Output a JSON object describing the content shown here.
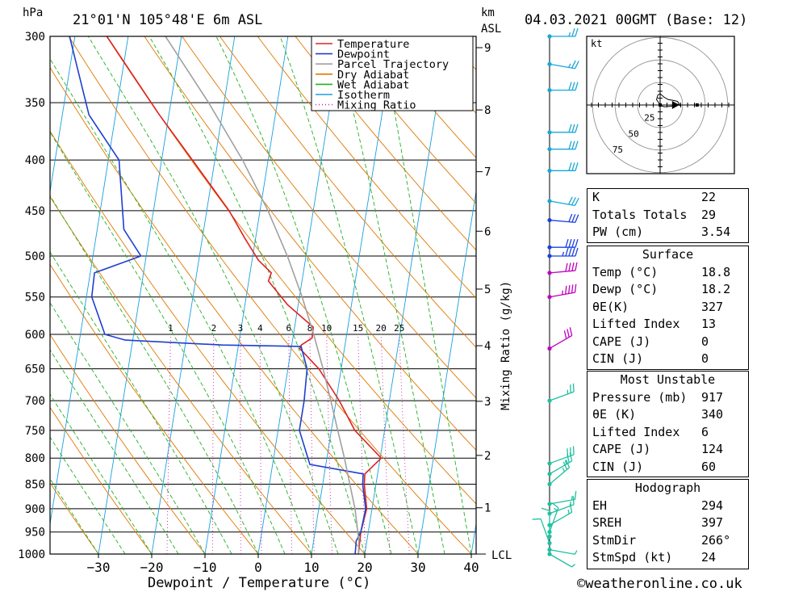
{
  "header": {
    "location": "21°01'N  105°48'E  6m  ASL",
    "date": "04.03.2021  00GMT  (Base: 12)",
    "hpa": "hPa",
    "km": "km",
    "asl": "ASL"
  },
  "footer": {
    "xlabel": "Dewpoint / Temperature (°C)",
    "credit": "©weatheronline.co.uk",
    "mixing_ratio_axis": "Mixing Ratio (g/kg)",
    "lcl": "LCL"
  },
  "legend": [
    {
      "label": "Temperature",
      "color": "#e02020",
      "style": "solid"
    },
    {
      "label": "Dewpoint",
      "color": "#1f3fd0",
      "style": "solid"
    },
    {
      "label": "Parcel Trajectory",
      "color": "#a0a0a0",
      "style": "solid"
    },
    {
      "label": "Dry Adiabat",
      "color": "#e07800",
      "style": "solid"
    },
    {
      "label": "Wet Adiabat",
      "color": "#20b020",
      "style": "solid"
    },
    {
      "label": "Isotherm",
      "color": "#1a9fe0",
      "style": "solid"
    },
    {
      "label": "Mixing Ratio",
      "color": "#d020b0",
      "style": "dotted"
    }
  ],
  "chart_data": {
    "type": "line",
    "title": "21°01'N  105°48'E  6m  ASL",
    "xlabel": "Dewpoint / Temperature (°C)",
    "ylabel": "hPa",
    "x_ticks": [
      -30,
      -20,
      -10,
      0,
      10,
      20,
      30,
      40
    ],
    "pressure_levels": [
      300,
      350,
      400,
      450,
      500,
      550,
      600,
      650,
      700,
      750,
      800,
      850,
      900,
      950,
      1000
    ],
    "km_ticks": [
      {
        "km": 1,
        "p": 898
      },
      {
        "km": 2,
        "p": 795
      },
      {
        "km": 3,
        "p": 701
      },
      {
        "km": 4,
        "p": 616
      },
      {
        "km": 5,
        "p": 540
      },
      {
        "km": 6,
        "p": 472
      },
      {
        "km": 7,
        "p": 411
      },
      {
        "km": 8,
        "p": 356
      },
      {
        "km": 9,
        "p": 308
      }
    ],
    "mixing_ratio_labels": [
      "1",
      "2",
      "3",
      "4",
      "6",
      "8",
      "10",
      "15",
      "20",
      "25"
    ],
    "mixing_ratio_values": [
      1,
      2,
      3,
      4,
      6,
      8,
      10,
      15,
      20,
      25
    ],
    "series": [
      {
        "name": "Temperature",
        "color": "#e02020",
        "points": [
          [
            1000,
            18.8
          ],
          [
            950,
            18.6
          ],
          [
            900,
            19.0
          ],
          [
            850,
            17.8
          ],
          [
            830,
            17.6
          ],
          [
            800,
            20.2
          ],
          [
            750,
            14.4
          ],
          [
            700,
            10.6
          ],
          [
            650,
            5.8
          ],
          [
            620,
            1.6
          ],
          [
            615,
            1.8
          ],
          [
            605,
            3.6
          ],
          [
            590,
            3.5
          ],
          [
            560,
            -2.0
          ],
          [
            530,
            -6.3
          ],
          [
            520,
            -6.0
          ],
          [
            505,
            -8.8
          ],
          [
            480,
            -12.0
          ],
          [
            450,
            -15.8
          ],
          [
            400,
            -24.2
          ],
          [
            360,
            -31.8
          ],
          [
            300,
            -44.0
          ]
        ]
      },
      {
        "name": "Dewpoint",
        "color": "#1f3fd0",
        "points": [
          [
            1000,
            18.2
          ],
          [
            970,
            18.0
          ],
          [
            950,
            18.6
          ],
          [
            900,
            18.8
          ],
          [
            850,
            17.5
          ],
          [
            830,
            17.3
          ],
          [
            812,
            7.0
          ],
          [
            750,
            4.0
          ],
          [
            700,
            4.0
          ],
          [
            650,
            3.6
          ],
          [
            617,
            1.8
          ],
          [
            615,
            -13.0
          ],
          [
            608,
            -31.4
          ],
          [
            600,
            -35.4
          ],
          [
            550,
            -39.0
          ],
          [
            520,
            -39.2
          ],
          [
            500,
            -31.0
          ],
          [
            470,
            -35.0
          ],
          [
            400,
            -38.0
          ],
          [
            360,
            -45.0
          ],
          [
            300,
            -51.0
          ]
        ]
      },
      {
        "name": "Parcel Trajectory",
        "color": "#a0a0a0",
        "points": [
          [
            1000,
            18.8
          ],
          [
            970,
            18.5
          ],
          [
            900,
            16.8
          ],
          [
            850,
            15.1
          ],
          [
            800,
            13.3
          ],
          [
            750,
            11.2
          ],
          [
            700,
            9.0
          ],
          [
            650,
            6.6
          ],
          [
            600,
            3.8
          ],
          [
            550,
            0.5
          ],
          [
            500,
            -3.5
          ],
          [
            450,
            -8.5
          ],
          [
            400,
            -14.8
          ],
          [
            350,
            -22.9
          ],
          [
            300,
            -33.0
          ]
        ]
      }
    ],
    "wind_profile": [
      {
        "p": 1000,
        "dir": 300,
        "spd": 5
      },
      {
        "p": 990,
        "dir": 280,
        "spd": 5
      },
      {
        "p": 975,
        "dir": 160,
        "spd": 10
      },
      {
        "p": 960,
        "dir": 180,
        "spd": 10
      },
      {
        "p": 950,
        "dir": 200,
        "spd": 15
      },
      {
        "p": 935,
        "dir": 240,
        "spd": 15
      },
      {
        "p": 910,
        "dir": 250,
        "spd": 15
      },
      {
        "p": 890,
        "dir": 260,
        "spd": 15
      },
      {
        "p": 850,
        "dir": 230,
        "spd": 25
      },
      {
        "p": 830,
        "dir": 240,
        "spd": 25
      },
      {
        "p": 810,
        "dir": 250,
        "spd": 30
      },
      {
        "p": 700,
        "dir": 250,
        "spd": 25
      },
      {
        "p": 620,
        "dir": 240,
        "spd": 30
      },
      {
        "p": 550,
        "dir": 260,
        "spd": 45
      },
      {
        "p": 520,
        "dir": 265,
        "spd": 40
      },
      {
        "p": 500,
        "dir": 270,
        "spd": 45
      },
      {
        "p": 490,
        "dir": 270,
        "spd": 40
      },
      {
        "p": 460,
        "dir": 275,
        "spd": 30
      },
      {
        "p": 440,
        "dir": 280,
        "spd": 30
      },
      {
        "p": 410,
        "dir": 270,
        "spd": 30
      },
      {
        "p": 390,
        "dir": 270,
        "spd": 30
      },
      {
        "p": 375,
        "dir": 270,
        "spd": 30
      },
      {
        "p": 340,
        "dir": 270,
        "spd": 30
      },
      {
        "p": 320,
        "dir": 280,
        "spd": 25
      },
      {
        "p": 300,
        "dir": 270,
        "spd": 25
      }
    ],
    "hodograph": {
      "unit": "kt",
      "ring_labels": [
        "25",
        "50",
        "75"
      ],
      "path": [
        [
          0,
          -5
        ],
        [
          -3,
          5
        ],
        [
          -8,
          12
        ],
        [
          -5,
          22
        ],
        [
          0,
          25
        ],
        [
          8,
          18
        ],
        [
          18,
          12
        ],
        [
          30,
          10
        ],
        [
          38,
          8
        ],
        [
          42,
          4
        ],
        [
          44,
          -2
        ],
        [
          40,
          2
        ],
        [
          30,
          -2
        ],
        [
          20,
          -3
        ],
        [
          10,
          -4
        ],
        [
          3,
          -2
        ]
      ],
      "storm_motion_kt": [
        24,
        0
      ]
    }
  },
  "stats": {
    "indices": [
      {
        "label": "K",
        "value": "22"
      },
      {
        "label": "Totals Totals",
        "value": "29"
      },
      {
        "label": "PW (cm)",
        "value": "3.54"
      }
    ],
    "surface": {
      "title": "Surface",
      "rows": [
        {
          "label": "Temp (°C)",
          "value": "18.8"
        },
        {
          "label": "Dewp (°C)",
          "value": "18.2"
        },
        {
          "label": "θE(K)",
          "value": "327"
        },
        {
          "label": "Lifted Index",
          "value": "13"
        },
        {
          "label": "CAPE (J)",
          "value": "0"
        },
        {
          "label": "CIN (J)",
          "value": "0"
        }
      ]
    },
    "most_unstable": {
      "title": "Most Unstable",
      "rows": [
        {
          "label": "Pressure (mb)",
          "value": "917"
        },
        {
          "label": "θE (K)",
          "value": "340"
        },
        {
          "label": "Lifted Index",
          "value": "6"
        },
        {
          "label": "CAPE (J)",
          "value": "124"
        },
        {
          "label": "CIN (J)",
          "value": "60"
        }
      ]
    },
    "hodograph": {
      "title": "Hodograph",
      "rows": [
        {
          "label": "EH",
          "value": "294"
        },
        {
          "label": "SREH",
          "value": "397"
        },
        {
          "label": "StmDir",
          "value": "266°"
        },
        {
          "label": "StmSpd (kt)",
          "value": "24"
        }
      ]
    }
  }
}
